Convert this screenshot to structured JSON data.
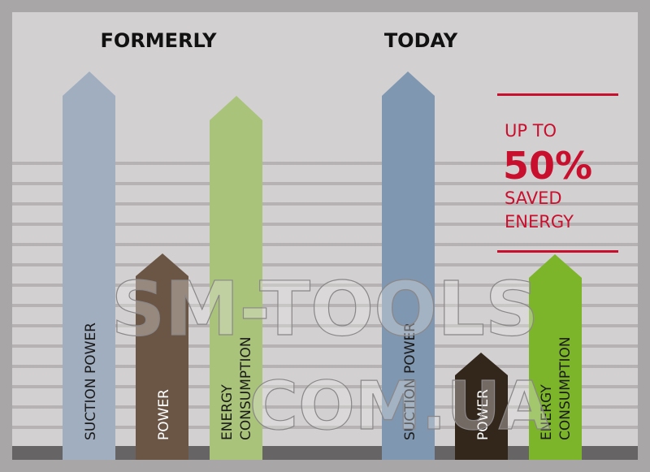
{
  "headings": {
    "formerly": "FORMERLY",
    "today": "TODAY"
  },
  "formerly": {
    "suction": "SUCTION POWER",
    "power": "POWER",
    "energy_1": "ENERGY",
    "energy_2": "CONSUMPTION"
  },
  "today": {
    "suction": "SUCTION POWER",
    "power": "POWER",
    "energy_1": "ENERGY",
    "energy_2": "CONSUMPTION"
  },
  "callout": {
    "line1": "UP TO",
    "percent": "50%",
    "line3": "SAVED",
    "line4": "ENERGY"
  },
  "watermark": {
    "line1": "SM-TOOLS",
    "line2": "COM.UA"
  },
  "colors": {
    "formerly_suction": "#a0aec0",
    "formerly_power": "#6b5646",
    "formerly_energy": "#a9c47a",
    "today_suction": "#7f97b0",
    "today_power": "#33271c",
    "today_energy": "#7db52a",
    "accent_red": "#c8102e"
  }
}
